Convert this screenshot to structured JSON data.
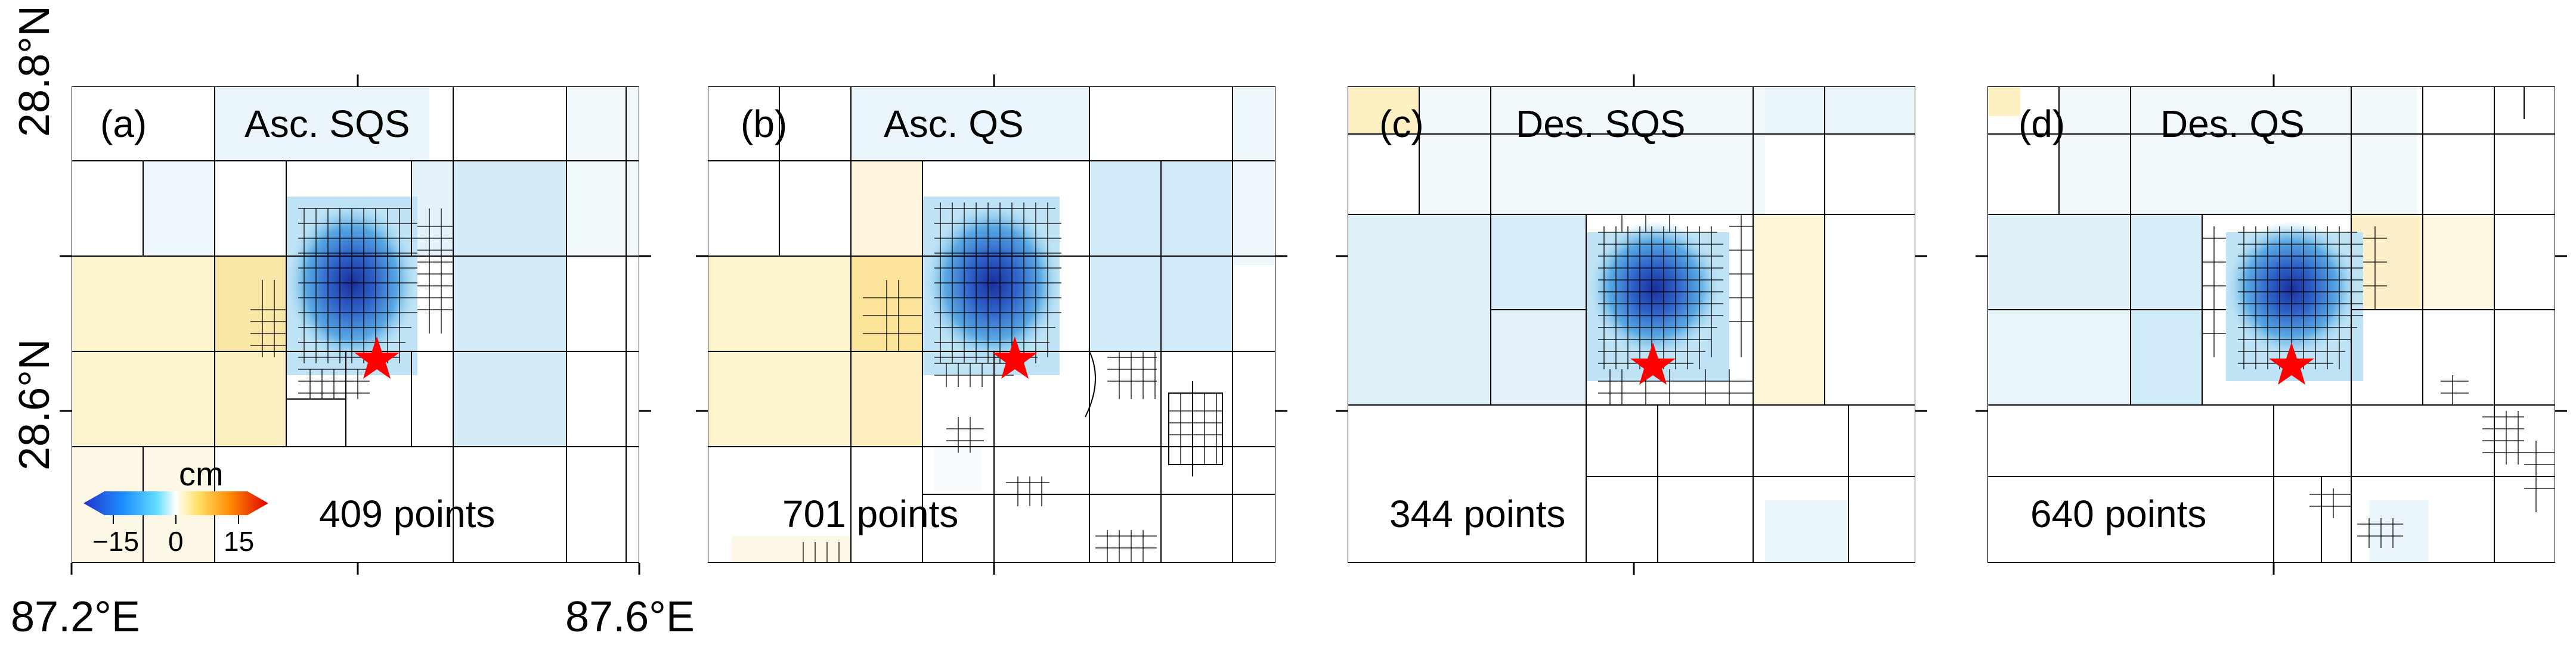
{
  "axes": {
    "lat_top": "28.8°N",
    "lat_bottom": "28.6°N",
    "lon_left": "87.2°E",
    "lon_right": "87.6°E"
  },
  "panels": [
    {
      "tag": "(a)",
      "title": "Asc. SQS",
      "points": "409 points"
    },
    {
      "tag": "(b)",
      "title": "Asc. QS",
      "points": "701 points"
    },
    {
      "tag": "(c)",
      "title": "Des. SQS",
      "points": "344 points"
    },
    {
      "tag": "(d)",
      "title": "Des. QS",
      "points": "640 points"
    }
  ],
  "colorbar": {
    "unit": "cm",
    "ticks": [
      "−15",
      "0",
      "15"
    ],
    "colors": [
      "#2233cc",
      "#1e90ff",
      "#66ddff",
      "#ffffff",
      "#ffe066",
      "#ff8800",
      "#dd0000"
    ]
  },
  "colors": {
    "epicenter_star": "#ff0000",
    "grid_line": "#000000",
    "deformation_blue": "#2a4fb8",
    "background_blue": "#dff0fa",
    "background_yellow": "#fdf3cc"
  }
}
